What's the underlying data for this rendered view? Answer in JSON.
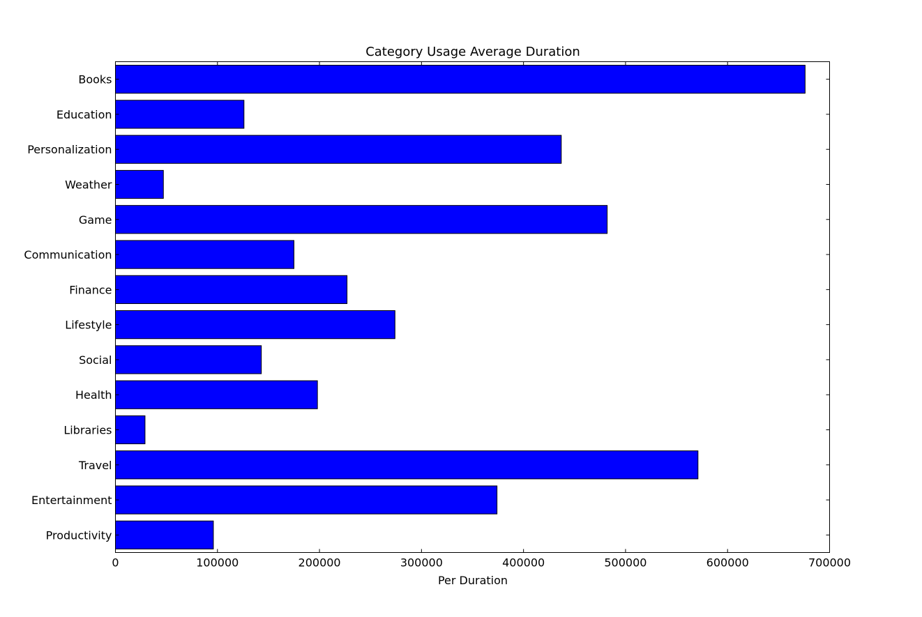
{
  "chart_data": {
    "type": "bar",
    "orientation": "horizontal",
    "title": "Category Usage Average Duration",
    "xlabel": "Per Duration",
    "ylabel": "",
    "xlim": [
      0,
      700000
    ],
    "xticks": [
      0,
      100000,
      200000,
      300000,
      400000,
      500000,
      600000,
      700000
    ],
    "xtick_labels": [
      "0",
      "100000",
      "200000",
      "300000",
      "400000",
      "500000",
      "600000",
      "700000"
    ],
    "grid": false,
    "legend": "none",
    "bar_color": "#0000ff",
    "edge_color": "#000000",
    "categories": [
      "Books",
      "Education",
      "Personalization",
      "Weather",
      "Game",
      "Communication",
      "Finance",
      "Lifestyle",
      "Social",
      "Health",
      "Libraries",
      "Travel",
      "Entertainment",
      "Productivity"
    ],
    "values": [
      676000,
      126000,
      437000,
      47000,
      482000,
      175000,
      227000,
      274000,
      143000,
      198000,
      29000,
      571000,
      374000,
      96000
    ]
  }
}
